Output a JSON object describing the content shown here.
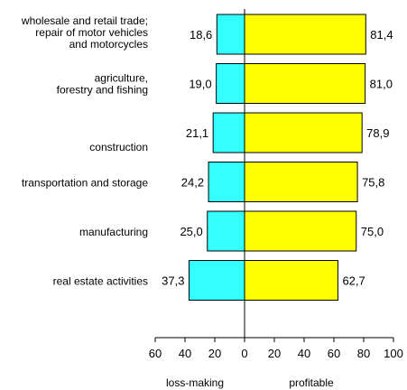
{
  "chart_data": {
    "type": "bar",
    "orientation": "horizontal-diverging",
    "categories": [
      [
        "wholesale and retail trade;",
        "repair of motor vehicles",
        "and motorcycles"
      ],
      [
        "agriculture,",
        "forestry and fishing"
      ],
      [
        "construction"
      ],
      [
        "transportation and storage"
      ],
      [
        "manufacturing"
      ],
      [
        "real estate activities"
      ]
    ],
    "series": [
      {
        "name": "loss-making",
        "values": [
          18.6,
          19.0,
          21.1,
          24.2,
          25.0,
          37.3
        ],
        "labels": [
          "18,6",
          "19,0",
          "21,1",
          "24,2",
          "25,0",
          "37,3"
        ],
        "color": "#33ffff"
      },
      {
        "name": "profitable",
        "values": [
          81.4,
          81.0,
          78.9,
          75.8,
          75.0,
          62.7
        ],
        "labels": [
          "81,4",
          "81,0",
          "78,9",
          "75,8",
          "75,0",
          "62,7"
        ],
        "color": "#ffff00"
      }
    ],
    "xlim": [
      -60,
      100
    ],
    "ticks": [
      -60,
      -40,
      -20,
      0,
      20,
      40,
      60,
      80,
      100
    ],
    "tick_labels": [
      "60",
      "40",
      "20",
      "0",
      "20",
      "40",
      "60",
      "80",
      "100"
    ],
    "xlabel_left": "loss-making",
    "xlabel_right": "profitable",
    "grid": false,
    "legend": "none"
  }
}
